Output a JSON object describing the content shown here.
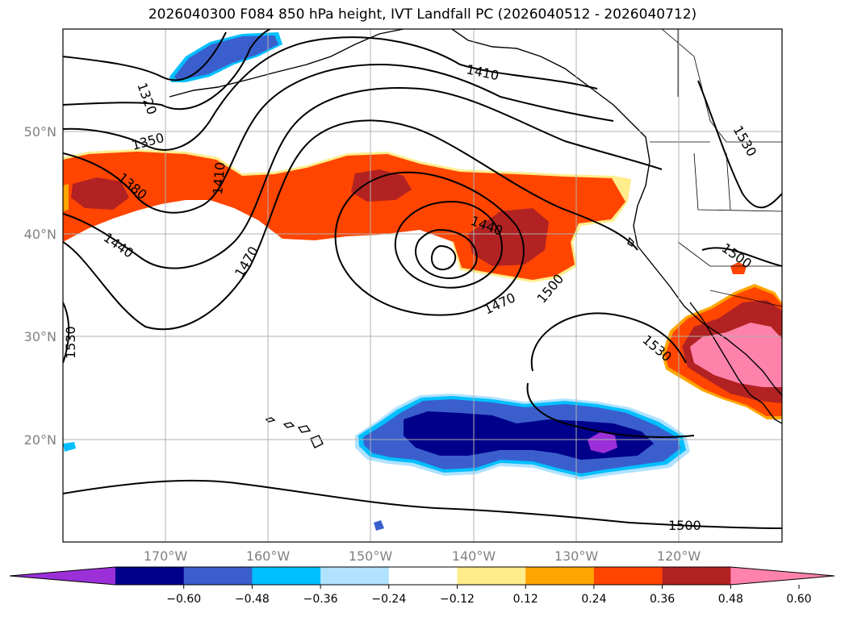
{
  "title": "2026040300 F084 850 hPa height, IVT Landfall PC (2026040512 - 2026040712)",
  "map": {
    "lat_labels": [
      "50°N",
      "40°N",
      "30°N",
      "20°N"
    ],
    "lon_labels": [
      "170°W",
      "160°W",
      "150°W",
      "140°W",
      "130°W",
      "120°W"
    ],
    "contour_labels": [
      "1320",
      "1350",
      "1380",
      "1410",
      "1410",
      "1440",
      "1440",
      "1470",
      "1470",
      "1500",
      "1500",
      "1530",
      "1530",
      "1530",
      "1500"
    ]
  },
  "colorbar": {
    "tick_labels": [
      "−0.60",
      "−0.48",
      "−0.36",
      "−0.24",
      "−0.12",
      "0.12",
      "0.24",
      "0.36",
      "0.48",
      "0.60"
    ],
    "colors": [
      "#9b30d9",
      "#00008b",
      "#3a5fcd",
      "#00bfff",
      "#b0e2ff",
      "#ffffff",
      "#ffec8b",
      "#ffa500",
      "#ff4500",
      "#b22222",
      "#ff82ab"
    ]
  }
}
